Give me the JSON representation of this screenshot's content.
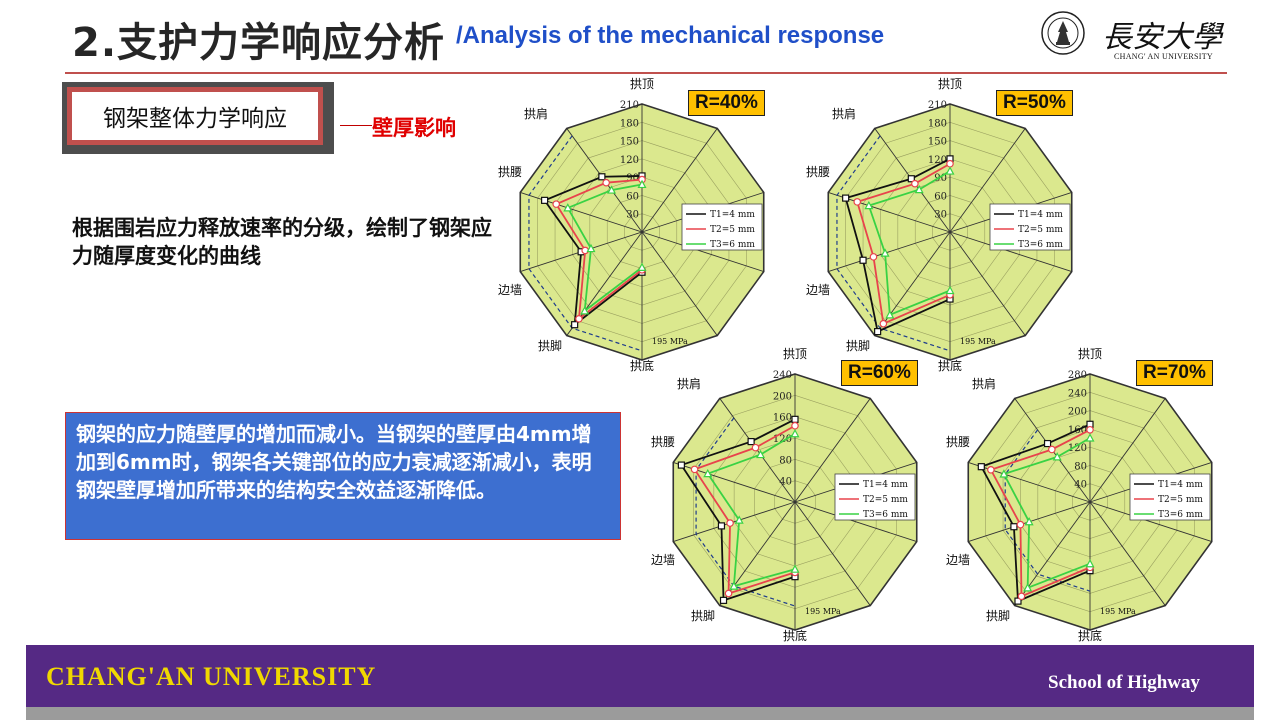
{
  "header": {
    "title_cn": "2.支护力学响应分析",
    "title_en": "/Analysis of the mechanical response",
    "logo_text_cn": "長安大學",
    "logo_text_en": "CHANG' AN UNIVERSITY"
  },
  "section": {
    "box_label": "钢架整体力学响应",
    "callout": "壁厚影响"
  },
  "description": "根据围岩应力释放速率的分级，绘制了钢架应力随厚度变化的曲线",
  "summary": "钢架的应力随壁厚的增加而减小。当钢架的壁厚由4mm增加到6mm时，钢架各关键部位的应力衰减逐渐减小，表明钢架壁厚增加所带来的结构安全效益逐渐降低。",
  "footer": {
    "left": "CHANG'AN  UNIVERSITY",
    "right": "School of Highway"
  },
  "colors": {
    "series": [
      "#111111",
      "#e8434c",
      "#39d244"
    ],
    "chart_bg": "#dbe88e",
    "badge": "#ffc000",
    "footer": "#552984"
  },
  "chart_data": [
    {
      "type": "radar",
      "badge": "R=40%",
      "axes": [
        "拱顶",
        "拱肩",
        "拱腰",
        "边墙",
        "拱脚",
        "拱底"
      ],
      "ticks": [
        "30",
        "60",
        "90",
        "120",
        "150",
        "180",
        "210"
      ],
      "max": 210,
      "limit_label": "195 MPa",
      "limit": 195,
      "series": [
        {
          "name": "T1=4 mm",
          "values": [
            92,
            112,
            168,
            105,
            188,
            66
          ]
        },
        {
          "name": "T2=5 mm",
          "values": [
            86,
            100,
            148,
            98,
            176,
            62
          ]
        },
        {
          "name": "T3=6 mm",
          "values": [
            78,
            85,
            128,
            88,
            160,
            58
          ]
        }
      ]
    },
    {
      "type": "radar",
      "badge": "R=50%",
      "axes": [
        "拱顶",
        "拱肩",
        "拱腰",
        "边墙",
        "拱脚",
        "拱底"
      ],
      "ticks": [
        "30",
        "60",
        "90",
        "120",
        "150",
        "180",
        "210"
      ],
      "max": 210,
      "limit_label": "195 MPa",
      "limit": 195,
      "series": [
        {
          "name": "T1=4 mm",
          "values": [
            120,
            108,
            180,
            150,
            202,
            110
          ]
        },
        {
          "name": "T2=5 mm",
          "values": [
            112,
            98,
            160,
            132,
            186,
            103
          ]
        },
        {
          "name": "T3=6 mm",
          "values": [
            100,
            86,
            140,
            112,
            168,
            96
          ]
        }
      ]
    },
    {
      "type": "radar",
      "badge": "R=60%",
      "axes": [
        "拱顶",
        "拱肩",
        "拱腰",
        "边墙",
        "拱脚",
        "拱底"
      ],
      "ticks": [
        "40",
        "80",
        "120",
        "160",
        "200",
        "240"
      ],
      "max": 240,
      "limit_label": "195 MPa",
      "limit": 195,
      "series": [
        {
          "name": "T1=4 mm",
          "values": [
            155,
            140,
            224,
            145,
            228,
            140
          ]
        },
        {
          "name": "T2=5 mm",
          "values": [
            143,
            126,
            198,
            128,
            212,
            132
          ]
        },
        {
          "name": "T3=6 mm",
          "values": [
            128,
            110,
            172,
            110,
            195,
            126
          ]
        }
      ]
    },
    {
      "type": "radar",
      "badge": "R=70%",
      "axes": [
        "拱顶",
        "拱肩",
        "拱腰",
        "边墙",
        "拱脚",
        "拱底"
      ],
      "ticks": [
        "40",
        "80",
        "120",
        "160",
        "200",
        "240",
        "280"
      ],
      "max": 280,
      "limit_label": "195 MPa",
      "limit": 195,
      "series": [
        {
          "name": "T1=4 mm",
          "values": [
            170,
            158,
            250,
            175,
            268,
            150
          ]
        },
        {
          "name": "T2=5 mm",
          "values": [
            158,
            142,
            228,
            160,
            255,
            143
          ]
        },
        {
          "name": "T3=6 mm",
          "values": [
            140,
            122,
            198,
            140,
            232,
            135
          ]
        }
      ]
    }
  ]
}
